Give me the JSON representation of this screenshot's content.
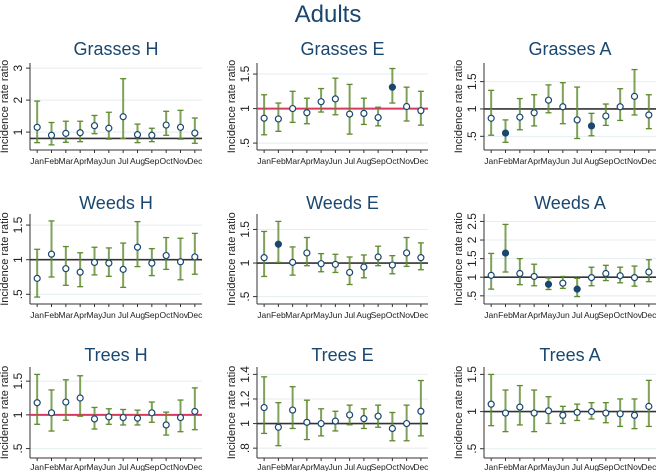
{
  "chart_data": {
    "type": "scatter",
    "title": "Adults",
    "ylabel": "Incidence rate ratio",
    "months": [
      "Jan",
      "Feb",
      "Mar",
      "Apr",
      "May",
      "Jun",
      "Jul",
      "Aug",
      "Sep",
      "Oct",
      "Nov",
      "Dec"
    ],
    "colors": {
      "title": "#1a476f",
      "marker": "#1a476f",
      "ci": "#5f8a2e",
      "grid": "#e4eef0",
      "ref_black": "#333333",
      "ref_red": "#d9385f"
    },
    "panels": [
      {
        "title": "Grasses H",
        "ylim": [
          0.44,
          3.16
        ],
        "yticks": [
          {
            "v": 1,
            "label": "1"
          },
          {
            "v": 2,
            "label": "2"
          },
          {
            "v": 3,
            "label": "3"
          }
        ],
        "refline": 0.8,
        "ref": "black",
        "points": [
          [
            1.15,
            0.67,
            1.97,
            0
          ],
          [
            0.9,
            0.6,
            1.3,
            0
          ],
          [
            0.96,
            0.68,
            1.34,
            0
          ],
          [
            0.98,
            0.7,
            1.34,
            0
          ],
          [
            1.2,
            0.95,
            1.52,
            0
          ],
          [
            1.12,
            0.78,
            1.62,
            0
          ],
          [
            1.48,
            0.8,
            2.67,
            0
          ],
          [
            0.92,
            0.67,
            1.25,
            0
          ],
          [
            0.9,
            0.7,
            1.12,
            0
          ],
          [
            1.22,
            0.9,
            1.65,
            0
          ],
          [
            1.15,
            0.78,
            1.68,
            0
          ],
          [
            0.97,
            0.65,
            1.44,
            0
          ]
        ]
      },
      {
        "title": "Grasses E",
        "ylim": [
          0.4,
          1.66
        ],
        "yticks": [
          {
            "v": 0.5,
            "label": ".5"
          },
          {
            "v": 1,
            "label": "1"
          },
          {
            "v": 1.5,
            "label": "1.5"
          }
        ],
        "refline": 1,
        "ref": "red",
        "points": [
          [
            0.86,
            0.62,
            1.2,
            0
          ],
          [
            0.85,
            0.67,
            1.08,
            0
          ],
          [
            1.0,
            0.8,
            1.25,
            0
          ],
          [
            0.94,
            0.78,
            1.15,
            0
          ],
          [
            1.1,
            0.95,
            1.29,
            0
          ],
          [
            1.14,
            0.91,
            1.44,
            0
          ],
          [
            0.92,
            0.63,
            1.35,
            0
          ],
          [
            0.93,
            0.77,
            1.15,
            0
          ],
          [
            0.87,
            0.75,
            1.02,
            0
          ],
          [
            1.31,
            1.08,
            1.58,
            1
          ],
          [
            1.03,
            0.82,
            1.31,
            0
          ],
          [
            0.97,
            0.76,
            1.25,
            0
          ]
        ]
      },
      {
        "title": "Grasses A",
        "ylim": [
          0.25,
          1.84
        ],
        "yticks": [
          {
            "v": 0.5,
            "label": ".5"
          },
          {
            "v": 1,
            "label": "1"
          },
          {
            "v": 1.5,
            "label": "1.5"
          }
        ],
        "refline": 1,
        "ref": "black",
        "points": [
          [
            0.83,
            0.52,
            1.34,
            0
          ],
          [
            0.56,
            0.39,
            0.8,
            1
          ],
          [
            0.85,
            0.62,
            1.19,
            0
          ],
          [
            0.93,
            0.69,
            1.26,
            0
          ],
          [
            1.16,
            0.93,
            1.44,
            0
          ],
          [
            1.04,
            0.73,
            1.48,
            0
          ],
          [
            0.8,
            0.46,
            1.4,
            0
          ],
          [
            0.69,
            0.51,
            0.92,
            1
          ],
          [
            0.87,
            0.7,
            1.09,
            0
          ],
          [
            1.04,
            0.79,
            1.37,
            0
          ],
          [
            1.23,
            0.89,
            1.72,
            0
          ],
          [
            0.89,
            0.64,
            1.26,
            0
          ]
        ]
      },
      {
        "title": "Weeds H",
        "ylim": [
          0.36,
          1.66
        ],
        "yticks": [
          {
            "v": 0.5,
            "label": ".5"
          },
          {
            "v": 1,
            "label": "1"
          },
          {
            "v": 1.5,
            "label": "1.5"
          }
        ],
        "refline": 1,
        "ref": "black",
        "points": [
          [
            0.73,
            0.46,
            1.15,
            0
          ],
          [
            1.08,
            0.75,
            1.56,
            0
          ],
          [
            0.87,
            0.63,
            1.19,
            0
          ],
          [
            0.82,
            0.61,
            1.1,
            0
          ],
          [
            0.96,
            0.78,
            1.18,
            0
          ],
          [
            0.95,
            0.76,
            1.17,
            0
          ],
          [
            0.86,
            0.6,
            1.24,
            0
          ],
          [
            1.18,
            0.9,
            1.55,
            0
          ],
          [
            0.95,
            0.77,
            1.16,
            0
          ],
          [
            1.06,
            0.86,
            1.32,
            0
          ],
          [
            0.97,
            0.71,
            1.31,
            0
          ],
          [
            1.04,
            0.79,
            1.38,
            0
          ]
        ]
      },
      {
        "title": "Weeds E",
        "ylim": [
          0.39,
          1.73
        ],
        "yticks": [
          {
            "v": 0.5,
            "label": ".5"
          },
          {
            "v": 1,
            "label": "1"
          },
          {
            "v": 1.5,
            "label": "1.5"
          }
        ],
        "refline": 1,
        "ref": "black",
        "points": [
          [
            1.08,
            0.8,
            1.47,
            0
          ],
          [
            1.28,
            1.01,
            1.62,
            1
          ],
          [
            1.01,
            0.82,
            1.24,
            0
          ],
          [
            1.15,
            0.96,
            1.38,
            0
          ],
          [
            0.99,
            0.87,
            1.14,
            0
          ],
          [
            0.98,
            0.86,
            1.13,
            0
          ],
          [
            0.86,
            0.68,
            1.09,
            0
          ],
          [
            0.94,
            0.78,
            1.12,
            0
          ],
          [
            1.09,
            0.96,
            1.25,
            0
          ],
          [
            0.97,
            0.84,
            1.11,
            0
          ],
          [
            1.15,
            0.95,
            1.38,
            0
          ],
          [
            1.08,
            0.9,
            1.3,
            0
          ]
        ]
      },
      {
        "title": "Weeds A",
        "ylim": [
          0.28,
          2.7
        ],
        "yticks": [
          {
            "v": 0.5,
            "label": ".5"
          },
          {
            "v": 1,
            "label": "1"
          },
          {
            "v": 1.5,
            "label": "1.5"
          },
          {
            "v": 2,
            "label": "2"
          },
          {
            "v": 2.5,
            "label": "2.5"
          }
        ],
        "refline": 1,
        "ref": "black",
        "points": [
          [
            1.05,
            0.68,
            1.64,
            0
          ],
          [
            1.65,
            1.14,
            2.42,
            1
          ],
          [
            1.1,
            0.8,
            1.5,
            0
          ],
          [
            1.02,
            0.77,
            1.35,
            0
          ],
          [
            0.81,
            0.67,
            0.98,
            1
          ],
          [
            0.84,
            0.7,
            1.02,
            0
          ],
          [
            0.68,
            0.48,
            0.97,
            1
          ],
          [
            0.99,
            0.77,
            1.27,
            0
          ],
          [
            1.1,
            0.91,
            1.32,
            0
          ],
          [
            1.04,
            0.85,
            1.27,
            0
          ],
          [
            0.99,
            0.76,
            1.3,
            0
          ],
          [
            1.14,
            0.88,
            1.47,
            0
          ]
        ]
      },
      {
        "title": "Trees H",
        "ylim": [
          0.36,
          1.71
        ],
        "yticks": [
          {
            "v": 0.5,
            "label": ".5"
          },
          {
            "v": 1,
            "label": "1"
          },
          {
            "v": 1.5,
            "label": "1.5"
          }
        ],
        "refline": 1,
        "ref": "red",
        "points": [
          [
            1.18,
            0.86,
            1.6,
            0
          ],
          [
            1.03,
            0.76,
            1.37,
            0
          ],
          [
            1.19,
            0.92,
            1.52,
            0
          ],
          [
            1.25,
            0.98,
            1.58,
            0
          ],
          [
            0.94,
            0.79,
            1.11,
            0
          ],
          [
            0.97,
            0.86,
            1.09,
            0
          ],
          [
            0.96,
            0.85,
            1.08,
            0
          ],
          [
            0.95,
            0.85,
            1.07,
            0
          ],
          [
            1.03,
            0.89,
            1.19,
            0
          ],
          [
            0.85,
            0.7,
            1.04,
            0
          ],
          [
            0.96,
            0.75,
            1.22,
            0
          ],
          [
            1.05,
            0.78,
            1.4,
            0
          ]
        ]
      },
      {
        "title": "Trees E",
        "ylim": [
          0.72,
          1.46
        ],
        "yticks": [
          {
            "v": 0.8,
            "label": ".8"
          },
          {
            "v": 1,
            "label": "1"
          },
          {
            "v": 1.2,
            "label": "1.2"
          },
          {
            "v": 1.4,
            "label": "1.4"
          }
        ],
        "refline": 1,
        "ref": "black",
        "points": [
          [
            1.13,
            0.92,
            1.38,
            0
          ],
          [
            0.97,
            0.82,
            1.17,
            0
          ],
          [
            1.11,
            0.96,
            1.3,
            0
          ],
          [
            1.01,
            0.87,
            1.19,
            0
          ],
          [
            1.0,
            0.9,
            1.12,
            0
          ],
          [
            1.02,
            0.94,
            1.1,
            0
          ],
          [
            1.07,
            0.99,
            1.15,
            0
          ],
          [
            1.04,
            0.96,
            1.12,
            0
          ],
          [
            1.06,
            0.97,
            1.15,
            0
          ],
          [
            0.96,
            0.86,
            1.09,
            0
          ],
          [
            1.0,
            0.86,
            1.15,
            0
          ],
          [
            1.1,
            0.9,
            1.35,
            0
          ]
        ]
      },
      {
        "title": "Trees A",
        "ylim": [
          0.375,
          1.6
        ],
        "yticks": [
          {
            "v": 0.5,
            "label": ".5"
          },
          {
            "v": 1,
            "label": "1"
          },
          {
            "v": 1.5,
            "label": "1.5"
          }
        ],
        "refline": 1,
        "ref": "black",
        "points": [
          [
            1.1,
            0.81,
            1.5,
            0
          ],
          [
            0.98,
            0.73,
            1.29,
            0
          ],
          [
            1.06,
            0.82,
            1.35,
            0
          ],
          [
            0.98,
            0.73,
            1.29,
            0
          ],
          [
            1.01,
            0.84,
            1.2,
            0
          ],
          [
            0.95,
            0.84,
            1.07,
            0
          ],
          [
            0.99,
            0.88,
            1.1,
            0
          ],
          [
            1.0,
            0.9,
            1.12,
            0
          ],
          [
            0.98,
            0.85,
            1.12,
            0
          ],
          [
            0.97,
            0.8,
            1.17,
            0
          ],
          [
            0.95,
            0.77,
            1.17,
            0
          ],
          [
            1.07,
            0.8,
            1.42,
            0
          ]
        ]
      }
    ]
  }
}
